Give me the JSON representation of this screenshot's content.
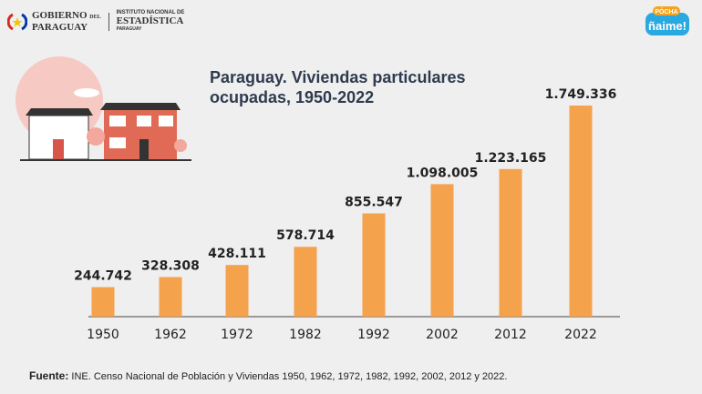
{
  "header": {
    "gov_logo_line1": "GOBIERNO",
    "gov_logo_del": "DEL",
    "gov_logo_line2": "PARAGUAY",
    "ine_line1": "INSTITUTO NACIONAL DE",
    "ine_line2": "ESTADÍSTICA",
    "ine_line3": "PARAGUAY",
    "brand_top": "PÓCHA",
    "brand_main": "ñaime!"
  },
  "chart_data": {
    "type": "bar",
    "title": "Paraguay. Viviendas particulares ocupadas, 1950-2022",
    "categories": [
      "1950",
      "1962",
      "1972",
      "1982",
      "1992",
      "2002",
      "2012",
      "2022"
    ],
    "values": [
      244742,
      328308,
      428111,
      578714,
      855547,
      1098005,
      1223165,
      1749336
    ],
    "labels": [
      "244.742",
      "328.308",
      "428.111",
      "578.714",
      "855.547",
      "1.098.005",
      "1.223.165",
      "1.749.336"
    ],
    "bar_color": "#f4a24c",
    "grid": false,
    "xlabel": "",
    "ylabel": ""
  },
  "footer": {
    "source_label": "Fuente:",
    "source_text": "INE. Censo Nacional de Población y Viviendas 1950, 1962, 1972, 1982, 1992, 2002, 2012 y 2022."
  }
}
